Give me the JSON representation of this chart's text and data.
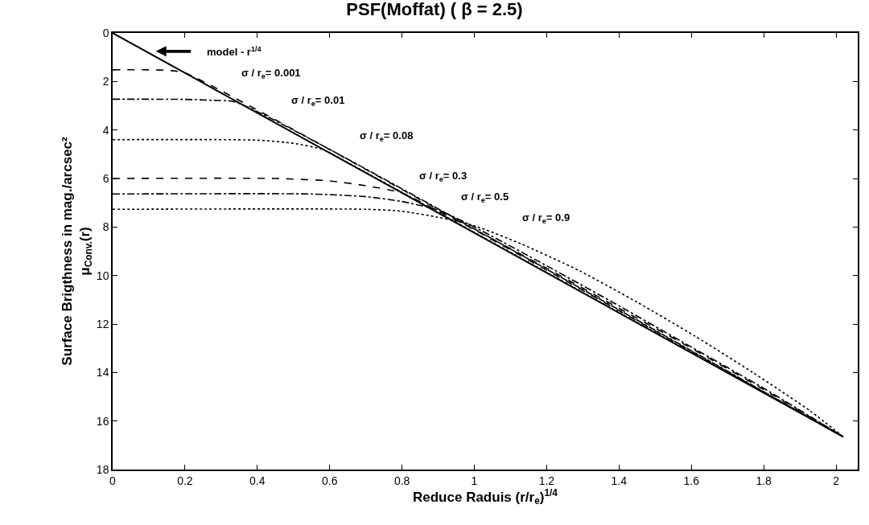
{
  "chart_data": {
    "type": "line",
    "title": "PSF(Moffat) ( β = 2.5)",
    "xlabel": "Reduce Raduis (r/r$_{e}$)$^{1/4}$",
    "ylabel": "Surface Brigthness in mag./arcsec²\nμ$_{Conv.}$(r)",
    "xlim": [
      0,
      2.06
    ],
    "xticks": [
      0,
      0.2,
      0.4,
      0.6,
      0.8,
      1,
      1.2,
      1.4,
      1.6,
      1.8,
      2
    ],
    "ylim": [
      18,
      0
    ],
    "yticks": [
      0,
      2,
      4,
      6,
      8,
      10,
      12,
      14,
      16,
      18
    ],
    "grid": false,
    "marker": "none",
    "series": [
      {
        "color": "#000000",
        "line_style": "solid",
        "x": [
          0,
          2.02
        ],
        "values": [
          0,
          16.65
        ]
      },
      {
        "color": "#000000",
        "line_style": "dashed",
        "x": [
          0,
          0.1,
          0.16,
          0.2,
          2.02
        ],
        "values": [
          1.52,
          1.52,
          1.55,
          1.65,
          16.65
        ]
      },
      {
        "color": "#000000",
        "line_style": "dashdot",
        "x": [
          0,
          0.2,
          0.28,
          0.34,
          2.02
        ],
        "values": [
          2.73,
          2.74,
          2.78,
          2.85,
          16.65
        ]
      },
      {
        "color": "#000000",
        "line_style": "dotted",
        "x": [
          0,
          0.4,
          0.5,
          0.58,
          0.62,
          2.02
        ],
        "values": [
          4.4,
          4.42,
          4.55,
          4.8,
          5.1,
          16.65
        ]
      },
      {
        "color": "#000000",
        "line_style": "dashed",
        "x": [
          0,
          0.45,
          0.6,
          0.7,
          0.8,
          0.9,
          1.0,
          1.2,
          1.4,
          1.6,
          1.8,
          2.02
        ],
        "values": [
          6.0,
          6.0,
          6.1,
          6.3,
          6.6,
          7.35,
          8.1,
          9.7,
          11.35,
          13.0,
          14.7,
          16.65
        ]
      },
      {
        "color": "#000000",
        "line_style": "dashdot",
        "x": [
          0,
          0.55,
          0.7,
          0.8,
          0.9,
          1.0,
          1.2,
          1.4,
          1.6,
          1.8,
          2.02
        ],
        "values": [
          6.64,
          6.64,
          6.75,
          6.95,
          7.3,
          8.0,
          9.6,
          11.25,
          12.95,
          14.65,
          16.65
        ]
      },
      {
        "color": "#000000",
        "line_style": "dotted",
        "x": [
          0,
          0.7,
          0.8,
          0.9,
          1.0,
          1.13,
          1.29,
          1.45,
          1.61,
          1.77,
          1.93,
          2.02
        ],
        "values": [
          7.27,
          7.27,
          7.35,
          7.6,
          7.95,
          8.7,
          9.8,
          11.1,
          12.5,
          14.0,
          15.6,
          16.65
        ]
      }
    ],
    "annotations": [
      "model - r$^{1/4}$",
      "σ / r$_{e}$= 0.001",
      "σ / r$_{e}$= 0.01",
      "σ / r$_{e}$= 0.08",
      "σ / r$_{e}$= 0.3",
      "σ / r$_{e}$= 0.5",
      "σ / r$_{e}$= 0.9"
    ]
  }
}
